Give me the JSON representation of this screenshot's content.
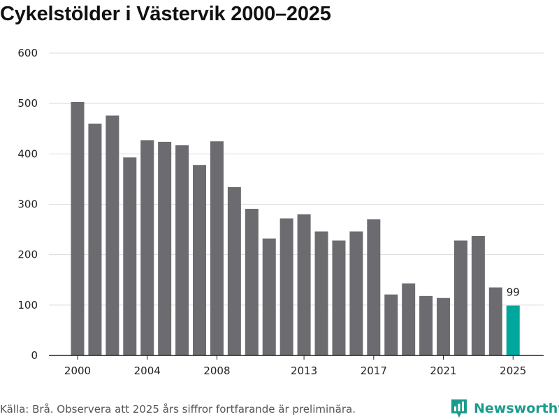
{
  "chart_data": {
    "type": "bar",
    "title": "Cykelstölder i Västervik 2000–2025",
    "xlabel": "",
    "ylabel": "",
    "ylim": [
      0,
      600
    ],
    "yticks": [
      0,
      100,
      200,
      300,
      400,
      500,
      600
    ],
    "xtick_labels": [
      "2000",
      "2004",
      "2008",
      "2013",
      "2017",
      "2021",
      "2025"
    ],
    "categories": [
      "2000",
      "2001",
      "2002",
      "2003",
      "2004",
      "2005",
      "2006",
      "2007",
      "2008",
      "2009",
      "2010",
      "2011",
      "2012",
      "2013",
      "2014",
      "2015",
      "2016",
      "2017",
      "2018",
      "2019",
      "2020",
      "2021",
      "2022",
      "2023",
      "2024",
      "2025"
    ],
    "values": [
      503,
      460,
      476,
      393,
      427,
      424,
      417,
      378,
      425,
      334,
      291,
      232,
      272,
      280,
      246,
      228,
      246,
      270,
      121,
      143,
      118,
      114,
      228,
      237,
      135,
      99
    ],
    "highlight_index": 25,
    "data_labels": [
      {
        "category": "2025",
        "text": "99"
      }
    ],
    "bar_color": "#6c6b70",
    "highlight_color": "#00a79d",
    "grid": true
  },
  "footer": {
    "source": "Källa: Brå. Observera att 2025 års siffror fortfarande är preliminära.",
    "brand": "Newsworthy",
    "brand_color": "#1a9c8c",
    "brand_icon": "bar-chart-badge-icon"
  }
}
